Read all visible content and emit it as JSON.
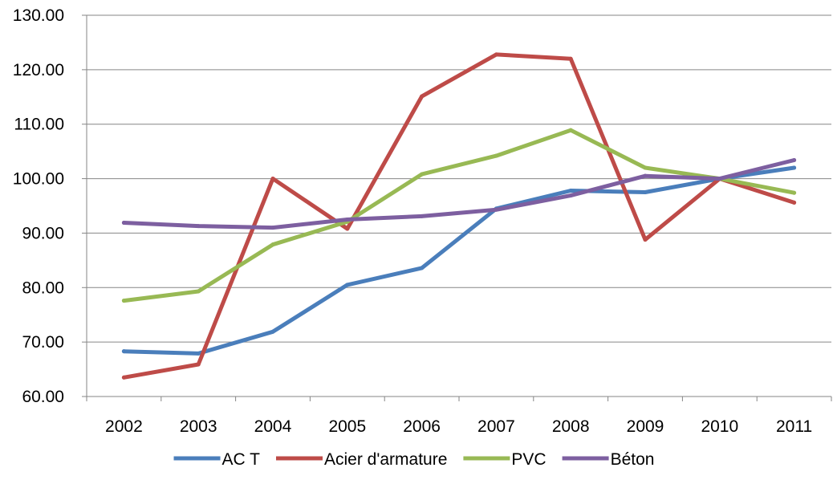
{
  "chart_data": {
    "type": "line",
    "categories": [
      "2002",
      "2003",
      "2004",
      "2005",
      "2006",
      "2007",
      "2008",
      "2009",
      "2010",
      "2011"
    ],
    "ylim": [
      60,
      130
    ],
    "yticks": [
      "60.00",
      "70.00",
      "80.00",
      "90.00",
      "100.00",
      "110.00",
      "120.00",
      "130.00"
    ],
    "grid": true,
    "legend_position": "bottom",
    "series": [
      {
        "name": "AC T",
        "color": "#4a7ebb",
        "values": [
          68.3,
          67.9,
          71.9,
          80.5,
          83.6,
          94.5,
          97.8,
          97.5,
          100.0,
          102.0
        ]
      },
      {
        "name": "Acier d'armature",
        "color": "#be4b48",
        "values": [
          63.5,
          65.9,
          100.0,
          90.8,
          115.1,
          122.8,
          122.0,
          88.8,
          100.0,
          95.6
        ]
      },
      {
        "name": "PVC",
        "color": "#98b954",
        "values": [
          77.6,
          79.3,
          87.9,
          92.1,
          100.8,
          104.2,
          108.9,
          102.0,
          100.0,
          97.4
        ]
      },
      {
        "name": "Béton",
        "color": "#7d5fa0",
        "values": [
          91.9,
          91.3,
          91.0,
          92.5,
          93.1,
          94.3,
          96.9,
          100.5,
          100.0,
          103.4
        ]
      }
    ]
  }
}
